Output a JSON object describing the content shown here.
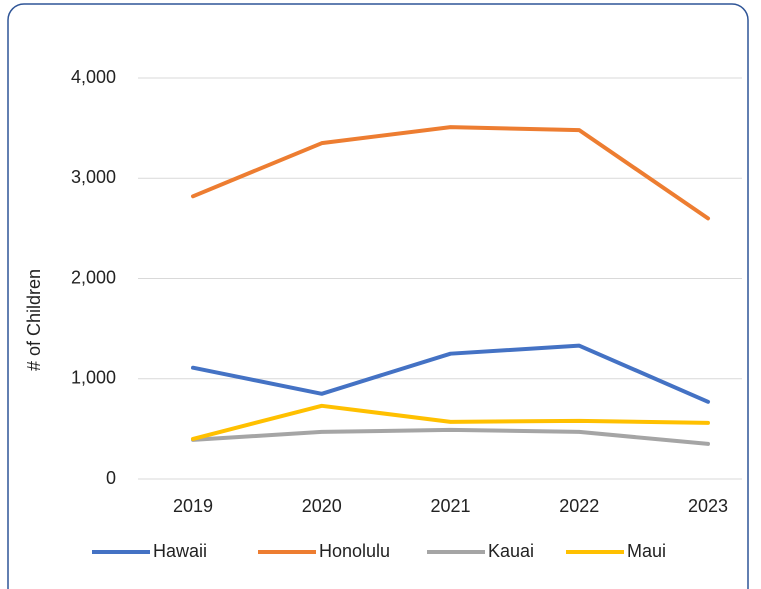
{
  "chart_data": {
    "type": "line",
    "y_label": "# of Children",
    "categories": [
      "2019",
      "2020",
      "2021",
      "2022",
      "2023"
    ],
    "series": [
      {
        "name": "Hawaii",
        "color": "#4472c4",
        "values": [
          1110,
          850,
          1250,
          1330,
          770
        ]
      },
      {
        "name": "Honolulu",
        "color": "#ed7d31",
        "values": [
          2820,
          3350,
          3510,
          3480,
          2600
        ]
      },
      {
        "name": "Kauai",
        "color": "#a5a5a5",
        "values": [
          390,
          470,
          490,
          470,
          350
        ]
      },
      {
        "name": "Maui",
        "color": "#ffc000",
        "values": [
          400,
          730,
          570,
          580,
          560
        ]
      }
    ],
    "ylim": [
      0,
      4000
    ],
    "yticks": [
      0,
      {
        "value": 1000,
        "label": "1,000"
      },
      {
        "value": 2000,
        "label": "2,000"
      },
      {
        "value": 3000,
        "label": "3,000"
      },
      {
        "value": 4000,
        "label": "4,000"
      }
    ],
    "grid": true,
    "legend": "bottom"
  }
}
